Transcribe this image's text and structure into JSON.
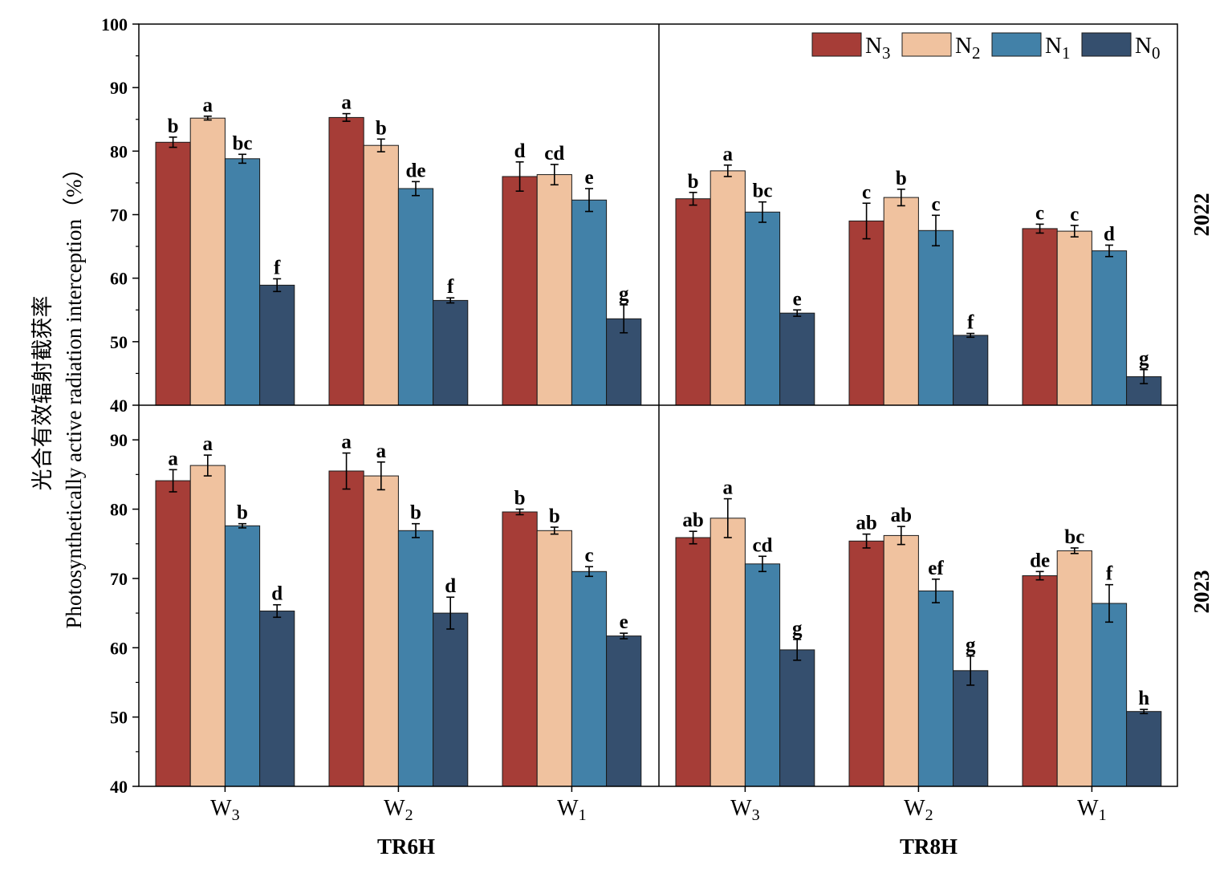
{
  "chart_data": {
    "type": "bar",
    "ylabel_lines": [
      "光合有效辐射截获率",
      "Photosynthetically active radiation interception（%）"
    ],
    "ylim_top": [
      40,
      100
    ],
    "ylim_bottom": [
      40,
      95
    ],
    "yticks_top": [
      40,
      50,
      60,
      70,
      80,
      90,
      100
    ],
    "yticks_bottom": [
      40,
      50,
      60,
      70,
      80,
      90
    ],
    "groups": [
      "TR6H",
      "TR8H"
    ],
    "years": [
      "2022",
      "2023"
    ],
    "categories": [
      {
        "main": "W",
        "sub": "3"
      },
      {
        "main": "W",
        "sub": "2"
      },
      {
        "main": "W",
        "sub": "1"
      }
    ],
    "series": [
      {
        "name": "N3",
        "label_main": "N",
        "label_sub": "3",
        "color": "#a63d37"
      },
      {
        "name": "N2",
        "label_main": "N",
        "label_sub": "2",
        "color": "#f0c29f"
      },
      {
        "name": "N1",
        "label_main": "N",
        "label_sub": "1",
        "color": "#4281a8"
      },
      {
        "name": "N0",
        "label_main": "N",
        "label_sub": "0",
        "color": "#354f6e"
      }
    ],
    "panels": [
      {
        "year": "2022",
        "group": "TR6H",
        "values": [
          [
            81.4,
            85.2,
            78.8,
            58.9
          ],
          [
            85.3,
            80.9,
            74.1,
            56.5
          ],
          [
            76.0,
            76.3,
            72.3,
            53.6
          ]
        ],
        "errors": [
          [
            0.8,
            0.3,
            0.7,
            1.0
          ],
          [
            0.6,
            1.0,
            1.1,
            0.4
          ],
          [
            2.3,
            1.6,
            1.8,
            2.2
          ]
        ],
        "letters": [
          [
            "b",
            "a",
            "bc",
            "f"
          ],
          [
            "a",
            "b",
            "de",
            "f"
          ],
          [
            "d",
            "cd",
            "e",
            "g"
          ]
        ]
      },
      {
        "year": "2022",
        "group": "TR8H",
        "values": [
          [
            72.5,
            76.9,
            70.4,
            54.5
          ],
          [
            69.0,
            72.7,
            67.5,
            51.0
          ],
          [
            67.8,
            67.4,
            64.3,
            44.5
          ]
        ],
        "errors": [
          [
            1.0,
            0.9,
            1.6,
            0.5
          ],
          [
            2.8,
            1.3,
            2.4,
            0.3
          ],
          [
            0.7,
            0.9,
            0.9,
            1.1
          ]
        ],
        "letters": [
          [
            "b",
            "a",
            "bc",
            "e"
          ],
          [
            "c",
            "b",
            "c",
            "f"
          ],
          [
            "c",
            "c",
            "d",
            "g"
          ]
        ]
      },
      {
        "year": "2023",
        "group": "TR6H",
        "values": [
          [
            84.1,
            86.3,
            77.6,
            65.3
          ],
          [
            85.5,
            84.8,
            76.9,
            65.0
          ],
          [
            79.6,
            76.9,
            71.0,
            61.7
          ]
        ],
        "errors": [
          [
            1.6,
            1.5,
            0.3,
            0.9
          ],
          [
            2.6,
            2.0,
            1.0,
            2.3
          ],
          [
            0.4,
            0.5,
            0.7,
            0.4
          ]
        ],
        "letters": [
          [
            "a",
            "a",
            "b",
            "d"
          ],
          [
            "a",
            "a",
            "b",
            "d"
          ],
          [
            "b",
            "b",
            "c",
            "e"
          ]
        ]
      },
      {
        "year": "2023",
        "group": "TR8H",
        "values": [
          [
            75.9,
            78.7,
            72.1,
            59.7
          ],
          [
            75.4,
            76.2,
            68.2,
            56.7
          ],
          [
            70.4,
            74.0,
            66.4,
            50.8
          ]
        ],
        "errors": [
          [
            0.9,
            2.8,
            1.1,
            1.5
          ],
          [
            1.0,
            1.3,
            1.7,
            2.1
          ],
          [
            0.6,
            0.4,
            2.7,
            0.3
          ]
        ],
        "letters": [
          [
            "ab",
            "a",
            "cd",
            "g"
          ],
          [
            "ab",
            "ab",
            "ef",
            "g"
          ],
          [
            "de",
            "bc",
            "f",
            "h"
          ]
        ]
      }
    ]
  }
}
